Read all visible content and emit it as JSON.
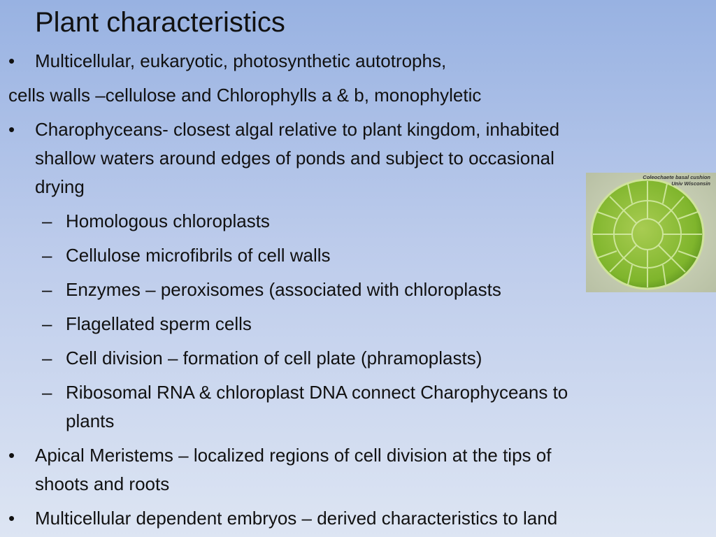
{
  "slide": {
    "title": "Plant characteristics",
    "items": [
      {
        "level": 1,
        "bullet": "•",
        "lines": [
          "Multicellular, eukaryotic, photosynthetic autotrophs,"
        ]
      },
      {
        "level": 0,
        "lines": [
          "cells walls –cellulose and Chlorophylls a & b, monophyletic"
        ]
      },
      {
        "level": 1,
        "bullet": "•",
        "lines": [
          "Charophyceans- closest algal relative to plant kingdom, inhabited",
          "shallow waters around edges of ponds and subject to occasional",
          "drying"
        ]
      },
      {
        "level": 2,
        "bullet": "–",
        "lines": [
          "Homologous chloroplasts"
        ]
      },
      {
        "level": 2,
        "bullet": "–",
        "lines": [
          "Cellulose microfibrils of cell walls"
        ]
      },
      {
        "level": 2,
        "bullet": "–",
        "lines": [
          "Enzymes – peroxisomes (associated with chloroplasts"
        ]
      },
      {
        "level": 2,
        "bullet": "–",
        "lines": [
          "Flagellated sperm cells"
        ]
      },
      {
        "level": 2,
        "bullet": "–",
        "lines": [
          "Cell division – formation of cell plate (phramoplasts)"
        ]
      },
      {
        "level": 2,
        "bullet": "–",
        "lines": [
          "Ribosomal RNA & chloroplast DNA connect Charophyceans to",
          "plants"
        ]
      },
      {
        "level": 1,
        "bullet": "•",
        "lines": [
          "Apical Meristems – localized regions of cell division at the tips of",
          "shoots and roots"
        ]
      },
      {
        "level": 1,
        "bullet": "•",
        "lines": [
          "Multicellular dependent embryos – derived characteristics to land"
        ]
      }
    ],
    "image": {
      "caption": [
        "Coleochaete basal cushion",
        "Univ Wisconsin"
      ]
    }
  }
}
